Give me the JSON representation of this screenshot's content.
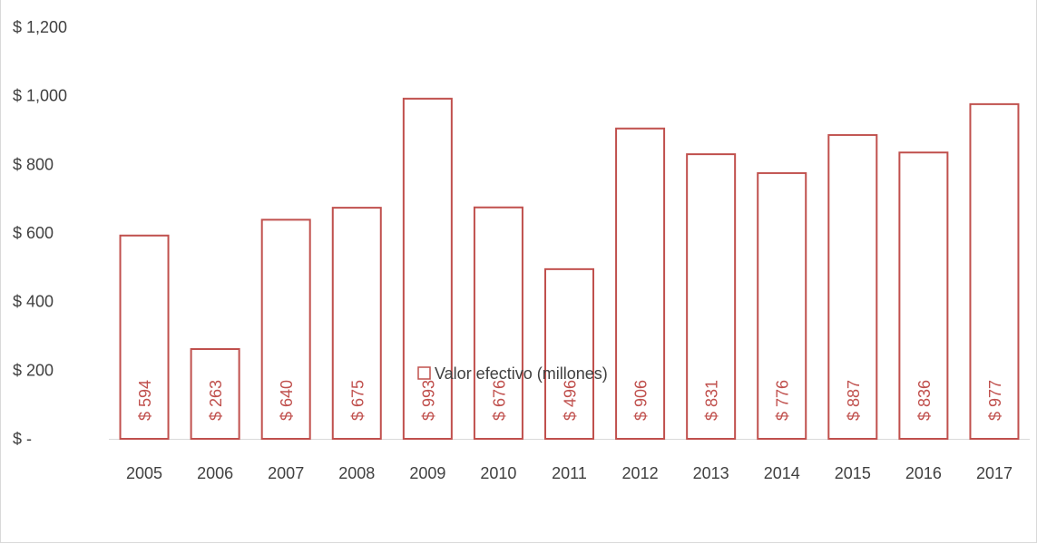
{
  "chart_data": {
    "type": "bar",
    "title": "",
    "xlabel": "",
    "ylabel": "",
    "categories": [
      "2005",
      "2006",
      "2007",
      "2008",
      "2009",
      "2010",
      "2011",
      "2012",
      "2013",
      "2014",
      "2015",
      "2016",
      "2017"
    ],
    "series": [
      {
        "name": "Valor efectivo (millones)",
        "values": [
          594,
          263,
          640,
          675,
          993,
          676,
          496,
          906,
          831,
          776,
          887,
          836,
          977
        ],
        "data_labels": [
          "$ 594",
          "$ 263",
          "$ 640",
          "$ 675",
          "$ 993",
          "$ 676",
          "$ 496",
          "$ 906",
          "$ 831",
          "$ 776",
          "$ 887",
          "$ 836",
          "$ 977"
        ]
      }
    ],
    "ylim": [
      0,
      1200
    ],
    "yticks": [
      0,
      200,
      400,
      600,
      800,
      1000,
      1200
    ],
    "ytick_labels": [
      "$ -",
      "$ 200",
      "$ 400",
      "$ 600",
      "$ 800",
      "$ 1,000",
      "$ 1,200"
    ],
    "grid": false,
    "bar_fill": "#ffffff",
    "bar_stroke": "#c0504d",
    "data_label_color": "#c0504d",
    "axis_line_color": "#d9d9d9",
    "legend": {
      "position": "bottom",
      "label": "Valor efectivo (millones)"
    }
  }
}
